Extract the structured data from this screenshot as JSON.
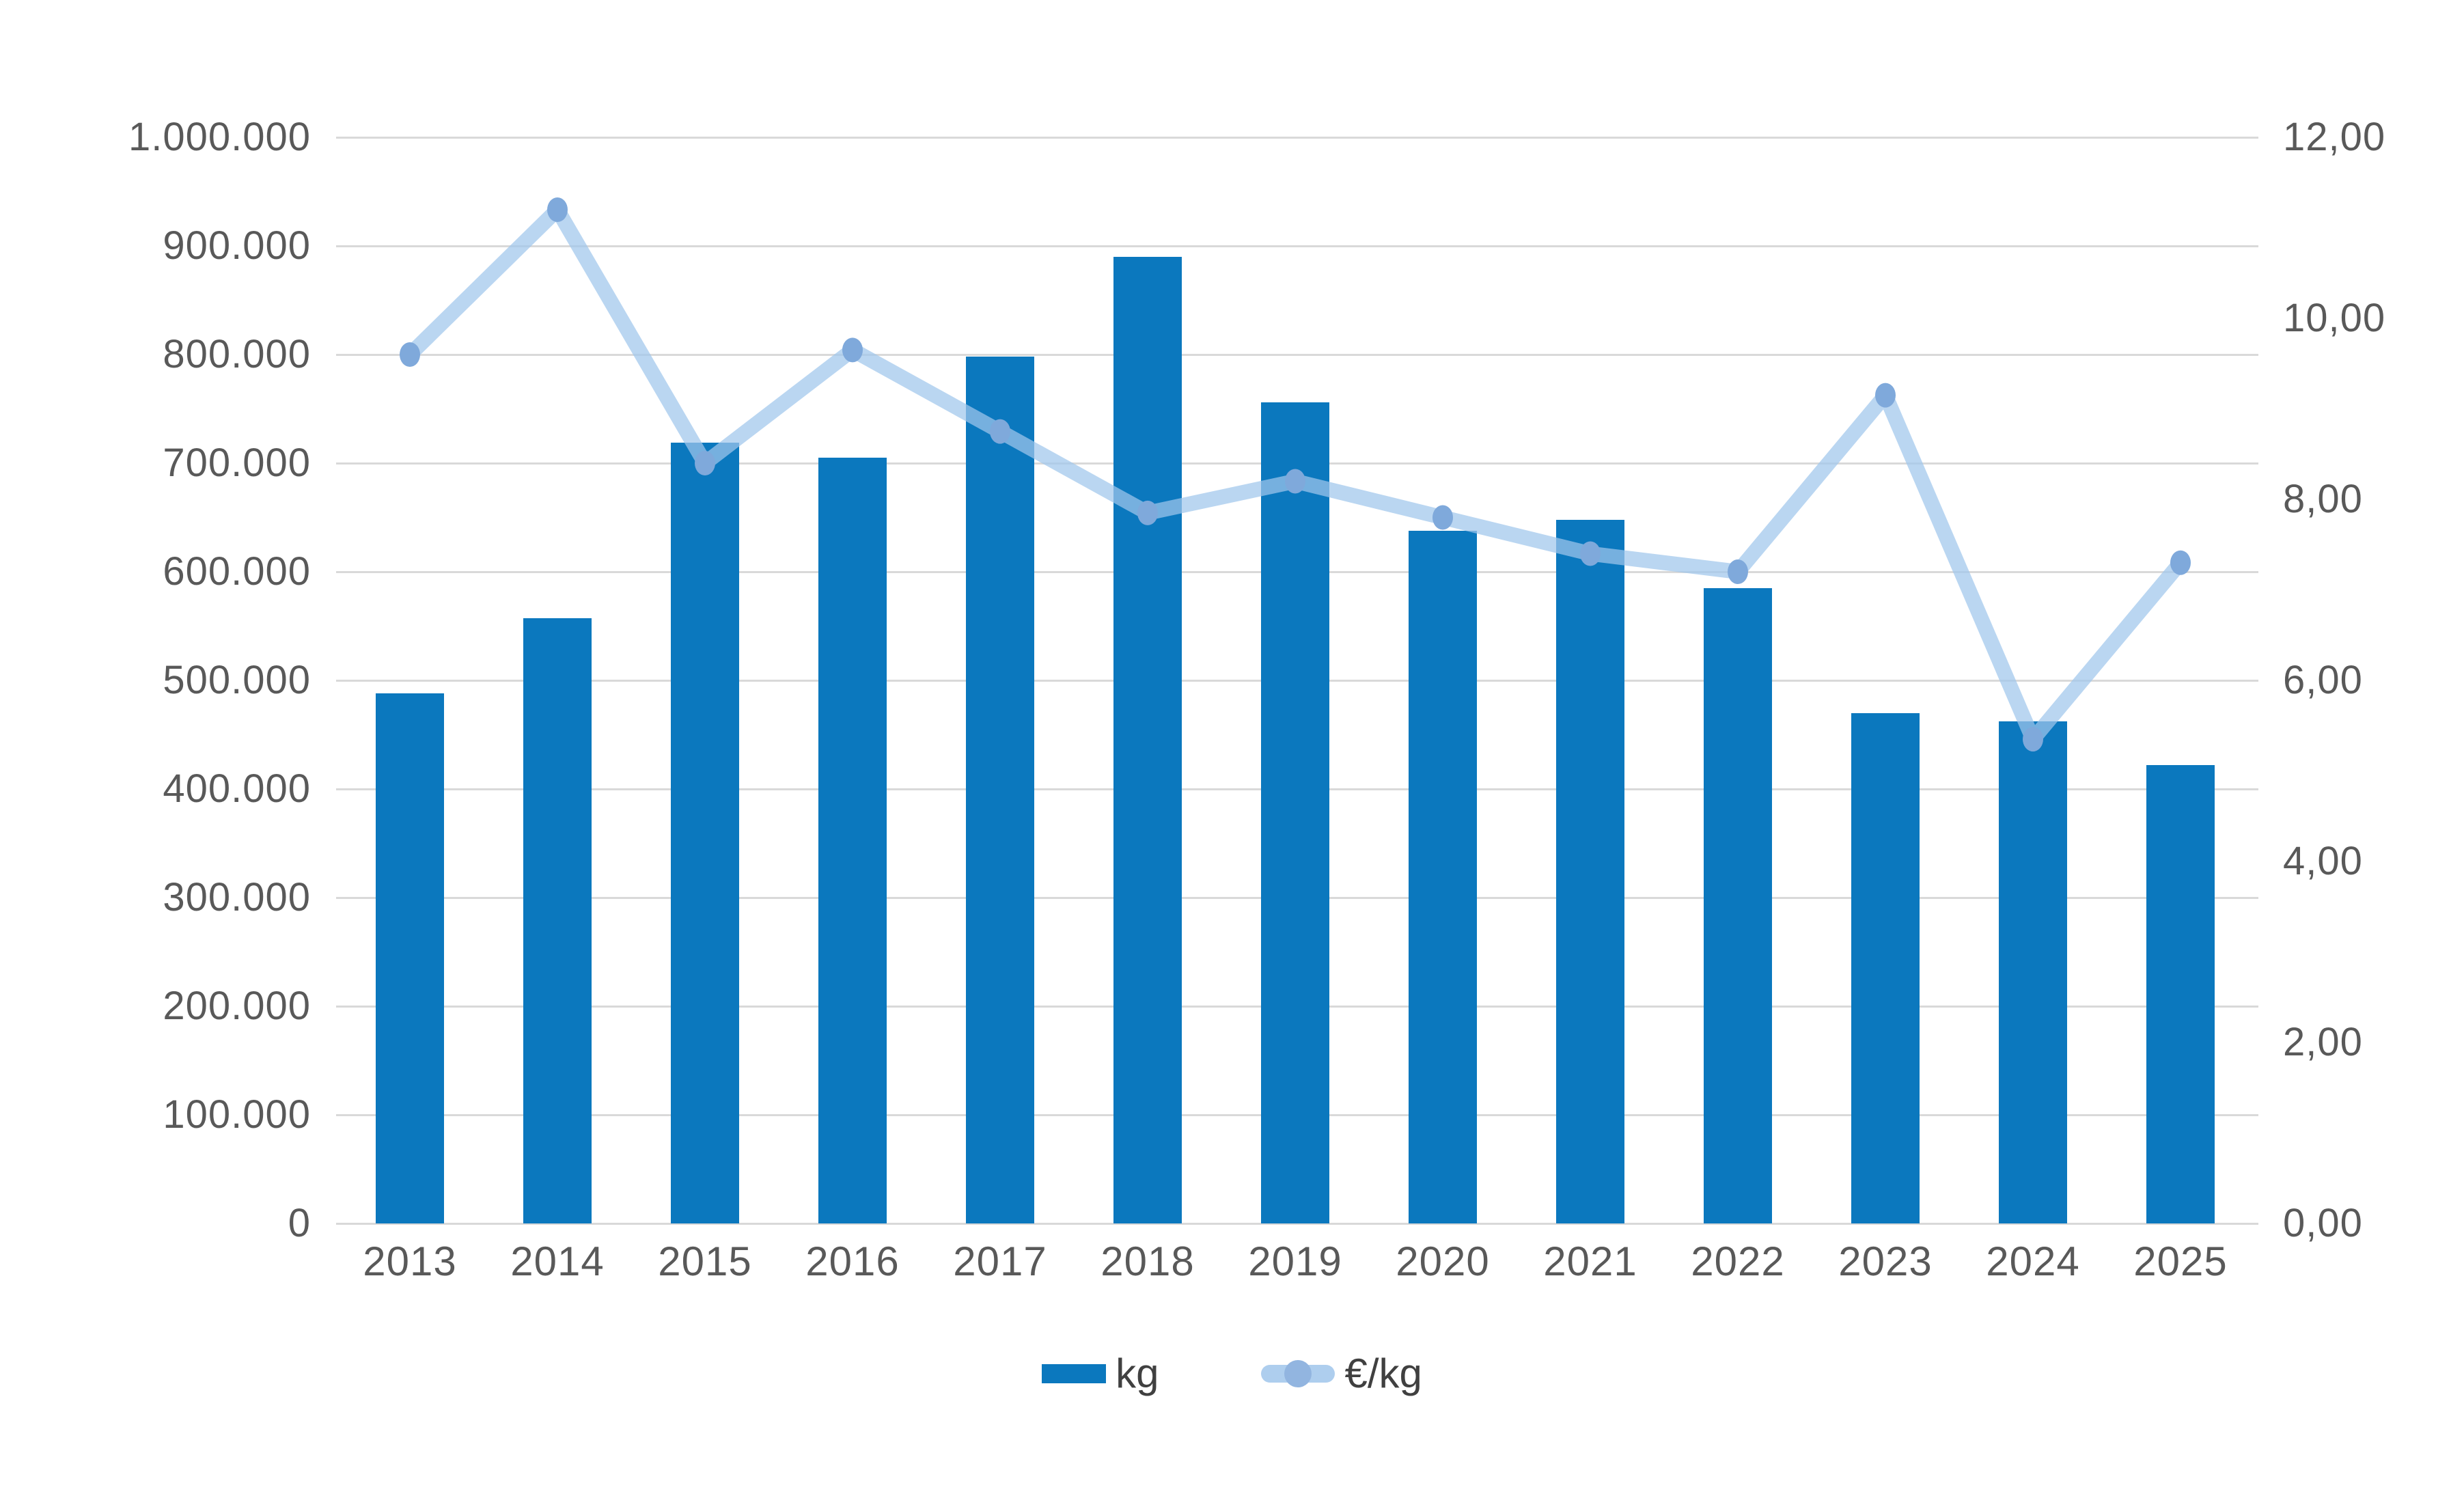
{
  "chart_data": {
    "type": "combo-bar-line",
    "title": "",
    "categories": [
      "2013",
      "2014",
      "2015",
      "2016",
      "2017",
      "2018",
      "2019",
      "2020",
      "2021",
      "2022",
      "2023",
      "2024",
      "2025"
    ],
    "series": [
      {
        "name": "kg",
        "type": "bar",
        "axis": "left",
        "values": [
          488000,
          557000,
          719000,
          705000,
          798000,
          890000,
          756000,
          638000,
          648000,
          585000,
          470000,
          462000,
          422000
        ]
      },
      {
        "name": "€/kg",
        "type": "line",
        "axis": "right",
        "values": [
          9.6,
          11.2,
          8.4,
          9.65,
          8.75,
          7.85,
          8.2,
          7.8,
          7.4,
          7.2,
          9.15,
          5.35,
          7.3
        ]
      }
    ],
    "left_axis": {
      "min": 0,
      "max": 1000000,
      "step": 100000,
      "tick_labels": [
        "0",
        "100.000",
        "200.000",
        "300.000",
        "400.000",
        "500.000",
        "600.000",
        "700.000",
        "800.000",
        "900.000",
        "1.000.000"
      ]
    },
    "right_axis": {
      "min": 0,
      "max": 12,
      "step": 2,
      "tick_labels": [
        "0,00",
        "2,00",
        "4,00",
        "6,00",
        "8,00",
        "10,00",
        "12,00"
      ]
    },
    "grid": true,
    "legend_position": "bottom"
  },
  "legend": {
    "items": [
      {
        "label": "kg"
      },
      {
        "label": "€/kg"
      }
    ]
  },
  "colors": {
    "bar": "#0b78be",
    "line": "#a0c6ec",
    "line_opacity": 0.72,
    "marker": "#7fa9db",
    "grid": "#d9d9d9",
    "axis_text": "#595959",
    "legend_text": "#404040",
    "background": "#ffffff"
  }
}
